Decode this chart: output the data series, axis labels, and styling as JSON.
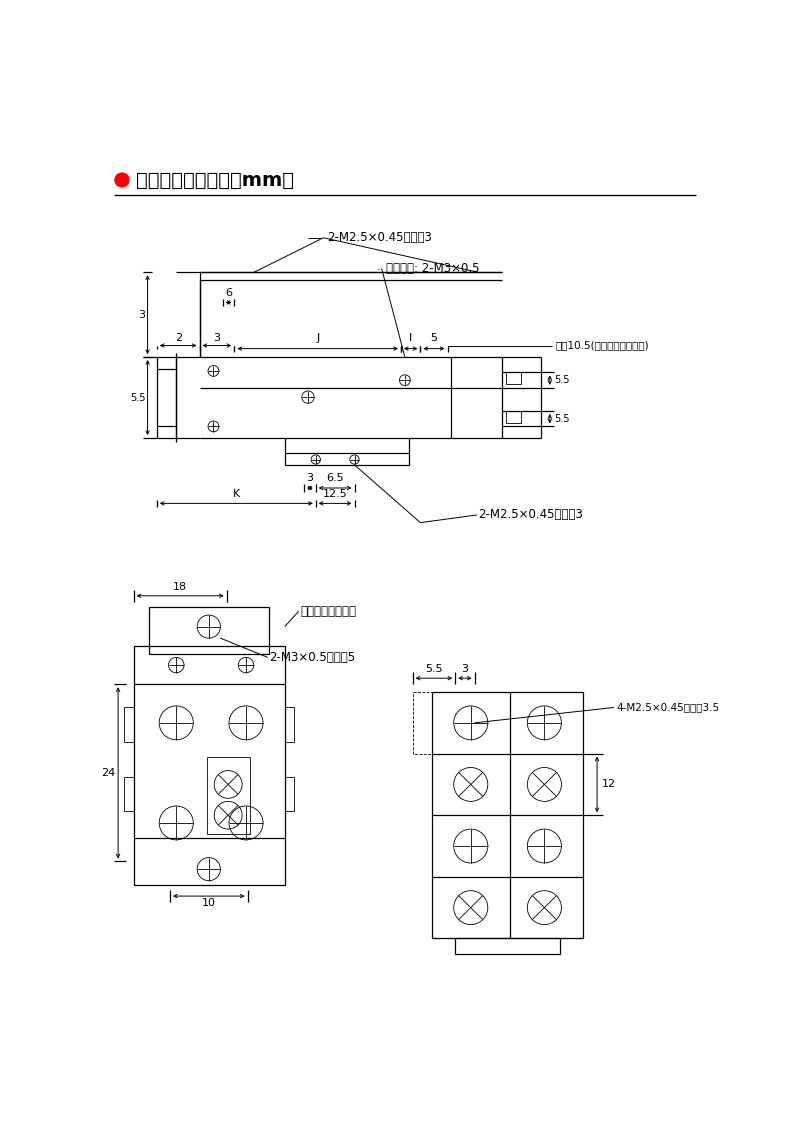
{
  "title": "外形尺寸参数（毫米mm）",
  "bg_color": "#ffffff",
  "line_color": "#000000",
  "label_top1": "2-M2.5×0.45螺紋深3",
  "label_top2": "接管口徑: 2-M3×0.5",
  "label_top3": "最圐10.5(後端行程調整裝置)",
  "label_bot_right": "2-M2.5×0.45螺紋深3",
  "label_front_adj": "前端行程調整裝置",
  "label_port": "2-M3×0.5螺紋深5",
  "label_screw": "4-M2.5×0.45螺紋深3.5"
}
